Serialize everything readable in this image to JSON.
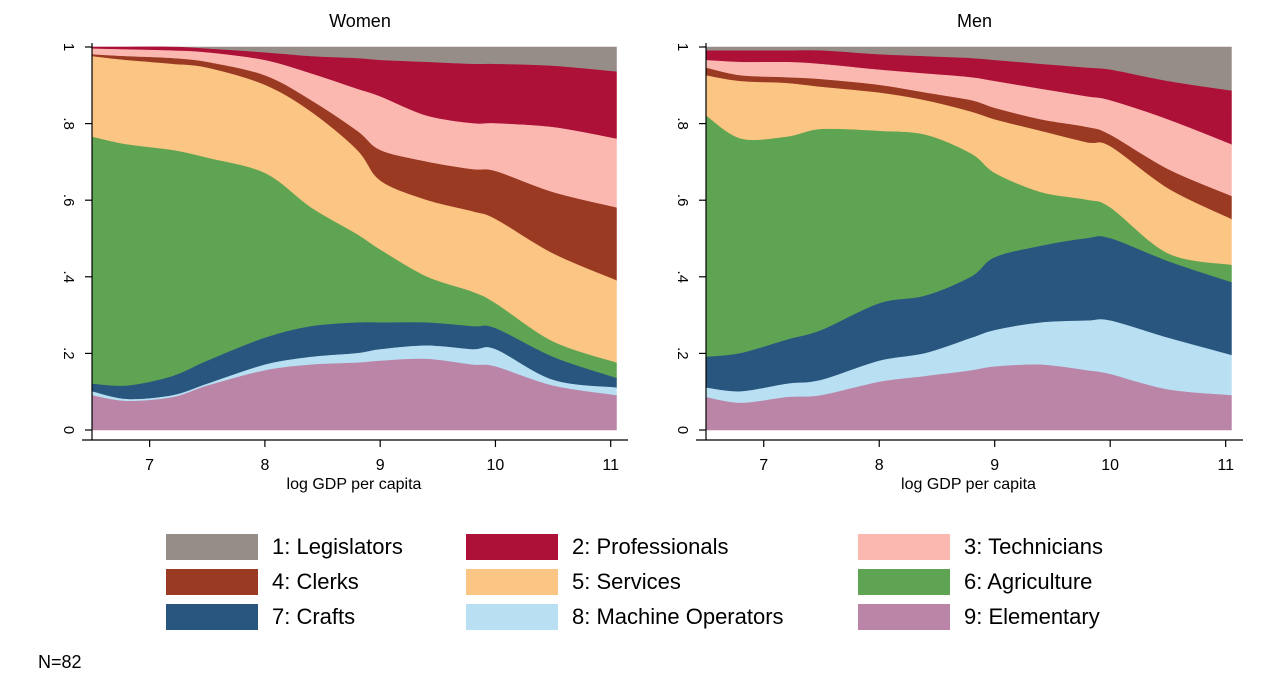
{
  "note": "N=82",
  "categories": [
    {
      "name": "1: Legislators",
      "color": "#968d89"
    },
    {
      "name": "2: Professionals",
      "color": "#ad1137"
    },
    {
      "name": "3: Technicians",
      "color": "#fbb8b0"
    },
    {
      "name": "4: Clerks",
      "color": "#9b3a22"
    },
    {
      "name": "5: Services",
      "color": "#fbc583"
    },
    {
      "name": "6: Agriculture",
      "color": "#5ea452"
    },
    {
      "name": "7: Crafts",
      "color": "#29567f"
    },
    {
      "name": "8: Machine Operators",
      "color": "#b8dff2"
    },
    {
      "name": "9: Elementary",
      "color": "#bb85a8"
    }
  ],
  "chart_data": [
    {
      "type": "area",
      "stacked": true,
      "title": "Women",
      "xlabel": "log GDP per capita",
      "ylabel": "",
      "xlim": [
        6.5,
        11.15
      ],
      "ylim": [
        0,
        1
      ],
      "xticks": [
        7,
        8,
        9,
        10,
        11
      ],
      "yticks": [
        0,
        0.2,
        0.4,
        0.6,
        0.8,
        1
      ],
      "ytick_labels": [
        "0",
        ".2",
        ".4",
        ".6",
        ".8",
        "1"
      ],
      "grid": false,
      "x": [
        6.5,
        6.8,
        7.2,
        7.5,
        8.0,
        8.4,
        8.8,
        9.0,
        9.4,
        9.8,
        10.0,
        10.5,
        11.05
      ],
      "upper_bounds": [
        [
          1,
          1,
          1,
          1,
          1,
          1,
          1,
          1,
          1,
          1,
          1,
          1,
          1
        ],
        [
          1,
          1,
          1,
          0.995,
          0.985,
          0.975,
          0.97,
          0.965,
          0.96,
          0.955,
          0.955,
          0.95,
          0.935
        ],
        [
          0.995,
          0.993,
          0.99,
          0.985,
          0.965,
          0.93,
          0.89,
          0.87,
          0.82,
          0.8,
          0.8,
          0.79,
          0.76
        ],
        [
          0.98,
          0.975,
          0.97,
          0.96,
          0.925,
          0.86,
          0.78,
          0.73,
          0.7,
          0.68,
          0.675,
          0.62,
          0.58
        ],
        [
          0.975,
          0.965,
          0.955,
          0.945,
          0.9,
          0.83,
          0.73,
          0.65,
          0.6,
          0.57,
          0.55,
          0.46,
          0.39
        ],
        [
          0.765,
          0.745,
          0.73,
          0.71,
          0.67,
          0.58,
          0.51,
          0.47,
          0.4,
          0.36,
          0.33,
          0.23,
          0.175
        ],
        [
          0.12,
          0.115,
          0.14,
          0.18,
          0.24,
          0.27,
          0.28,
          0.28,
          0.28,
          0.27,
          0.265,
          0.19,
          0.135
        ],
        [
          0.1,
          0.08,
          0.09,
          0.12,
          0.17,
          0.19,
          0.2,
          0.21,
          0.22,
          0.21,
          0.21,
          0.13,
          0.11
        ],
        [
          0.09,
          0.075,
          0.085,
          0.115,
          0.155,
          0.17,
          0.175,
          0.18,
          0.185,
          0.17,
          0.165,
          0.115,
          0.09
        ]
      ]
    },
    {
      "type": "area",
      "stacked": true,
      "title": "Men",
      "xlabel": "log GDP per capita",
      "ylabel": "",
      "xlim": [
        6.5,
        11.15
      ],
      "ylim": [
        0,
        1
      ],
      "xticks": [
        7,
        8,
        9,
        10,
        11
      ],
      "yticks": [
        0,
        0.2,
        0.4,
        0.6,
        0.8,
        1
      ],
      "ytick_labels": [
        "0",
        ".2",
        ".4",
        ".6",
        ".8",
        "1"
      ],
      "grid": false,
      "x": [
        6.5,
        6.8,
        7.2,
        7.5,
        8.0,
        8.4,
        8.8,
        9.0,
        9.4,
        9.8,
        10.0,
        10.5,
        11.05
      ],
      "upper_bounds": [
        [
          1,
          1,
          1,
          1,
          1,
          1,
          1,
          1,
          1,
          1,
          1,
          1,
          1
        ],
        [
          0.99,
          0.99,
          0.99,
          0.99,
          0.98,
          0.975,
          0.97,
          0.965,
          0.955,
          0.945,
          0.94,
          0.91,
          0.885
        ],
        [
          0.965,
          0.96,
          0.96,
          0.955,
          0.94,
          0.93,
          0.92,
          0.91,
          0.89,
          0.87,
          0.86,
          0.81,
          0.745
        ],
        [
          0.945,
          0.925,
          0.92,
          0.915,
          0.9,
          0.88,
          0.86,
          0.84,
          0.81,
          0.79,
          0.77,
          0.68,
          0.61
        ],
        [
          0.925,
          0.91,
          0.905,
          0.895,
          0.88,
          0.86,
          0.83,
          0.81,
          0.78,
          0.75,
          0.74,
          0.63,
          0.55
        ],
        [
          0.82,
          0.76,
          0.765,
          0.785,
          0.78,
          0.77,
          0.72,
          0.67,
          0.62,
          0.6,
          0.58,
          0.46,
          0.43
        ],
        [
          0.19,
          0.2,
          0.235,
          0.26,
          0.33,
          0.35,
          0.4,
          0.45,
          0.48,
          0.5,
          0.5,
          0.44,
          0.385
        ],
        [
          0.11,
          0.1,
          0.12,
          0.13,
          0.18,
          0.2,
          0.24,
          0.26,
          0.28,
          0.285,
          0.285,
          0.24,
          0.195
        ],
        [
          0.085,
          0.07,
          0.085,
          0.09,
          0.125,
          0.14,
          0.155,
          0.165,
          0.17,
          0.155,
          0.145,
          0.105,
          0.09
        ]
      ]
    }
  ]
}
